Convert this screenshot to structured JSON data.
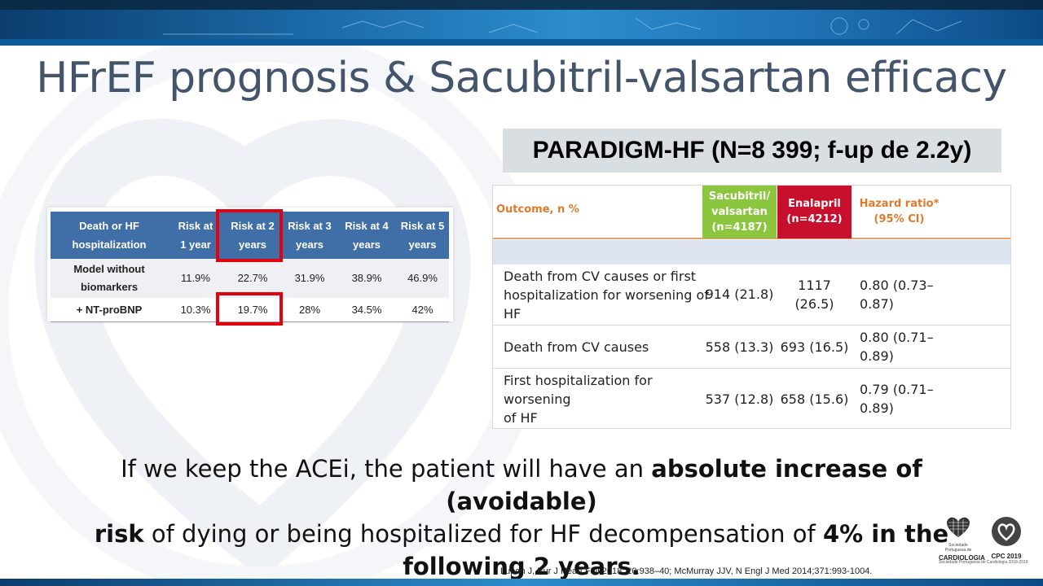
{
  "title": "HFrEF prognosis & Sacubitril-valsartan efficacy",
  "risk_table": {
    "headers": [
      "Death or HF hospitalization",
      "Risk at 1 year",
      "Risk at 2 years",
      "Risk at 3 years",
      "Risk at 4 years",
      "Risk at 5 years"
    ],
    "header_lines": [
      [
        "Death or HF",
        "hospitalization"
      ],
      [
        "Risk at",
        "1 year"
      ],
      [
        "Risk at 2",
        "years"
      ],
      [
        "Risk at 3",
        "years"
      ],
      [
        "Risk at 4",
        "years"
      ],
      [
        "Risk at 5",
        "years"
      ]
    ],
    "rows": [
      {
        "label_lines": [
          "Model without",
          "biomarkers"
        ],
        "values": [
          "11.9%",
          "22.7%",
          "31.9%",
          "38.9%",
          "46.9%"
        ]
      },
      {
        "label_lines": [
          "+ NT-proBNP"
        ],
        "values": [
          "10.3%",
          "19.7%",
          "28%",
          "34.5%",
          "42%"
        ]
      }
    ]
  },
  "paradigm": {
    "title": "PARADIGM-HF (N=8 399; f-up de 2.2y)",
    "header": {
      "outcome": "Outcome, n %",
      "sacubitril_lines": [
        "Sacubitril/",
        "valsartan",
        "(n=4187)"
      ],
      "enalapril_lines": [
        "Enalapril",
        "(n=4212)"
      ],
      "hr_lines": [
        "Hazard ratio*",
        "(95% CI)"
      ]
    },
    "rows": [
      {
        "outcome_lines": [
          "Death from CV causes or first",
          "hospitalization for worsening of",
          "HF"
        ],
        "sac": "914 (21.8)",
        "ena_lines": [
          "1117",
          "(26.5)"
        ],
        "hr_lines": [
          "0.80 (0.73–",
          "0.87)"
        ]
      },
      {
        "outcome_lines": [
          "Death from CV causes"
        ],
        "sac": "558 (13.3)",
        "ena_lines": [
          "693 (16.5)"
        ],
        "hr_lines": [
          "0.80 (0.71–",
          "0.89)"
        ]
      },
      {
        "outcome_lines": [
          "First hospitalization for",
          "worsening",
          "of HF"
        ],
        "sac": "537 (12.8)",
        "ena_lines": [
          "658 (15.6)"
        ],
        "hr_lines": [
          "0.79 (0.71–",
          "0.89)"
        ]
      }
    ]
  },
  "statement": {
    "p1": "If we keep the ACEi, the patient will have an ",
    "b1": "absolute increase of (avoidable)",
    "b2": "risk",
    "p2": " of dying or being hospitalized for HF decompensation of ",
    "b3": "4% in the",
    "b4": "following 2 years."
  },
  "reference": "Lupon J, Eur J Heart Fail 2018; 20:938–40; McMurray JJV, N Engl J Med 2014;371:993-1004.",
  "logos": {
    "spc_name": "CARDIOLOGIA",
    "spc_sub": "Sociedade Portuguesa de",
    "cpc": "CPC 2019",
    "footer": "Sociedade Portuguesa de Cardiologia 2018-2019"
  },
  "colors": {
    "title": "#44546a",
    "table_header": "#3f6fa6",
    "highlight": "#e3000f",
    "sacubitril": "#8cc63f",
    "enalapril": "#c8102e",
    "orange": "#e07a2a"
  }
}
